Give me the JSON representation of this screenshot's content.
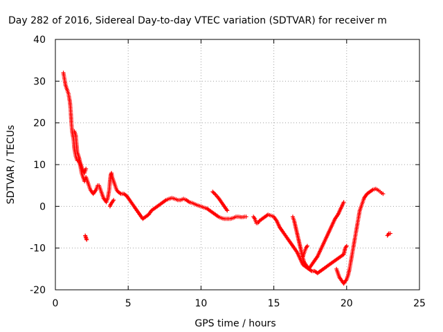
{
  "chart_data": {
    "type": "scatter",
    "title": "Day 282 of 2016, Sidereal Day-to-day VTEC variation (SDTVAR) for receiver m",
    "xlabel": "GPS time / hours",
    "ylabel": "SDTVAR / TECUs",
    "xlim": [
      0,
      25
    ],
    "ylim": [
      -20,
      40
    ],
    "xticks": [
      "0",
      "5",
      "10",
      "15",
      "20",
      "25"
    ],
    "yticks": [
      "-20",
      "-10",
      "0",
      "10",
      "20",
      "30",
      "40"
    ],
    "grid": true,
    "marker": "+",
    "color": "#ff0000",
    "series": [
      {
        "segments": [
          [
            [
              0.55,
              32
            ],
            [
              0.6,
              31
            ],
            [
              0.65,
              30
            ],
            [
              0.7,
              29
            ],
            [
              0.8,
              28
            ],
            [
              0.9,
              27
            ],
            [
              1.0,
              25
            ],
            [
              1.05,
              23
            ],
            [
              1.1,
              20
            ],
            [
              1.15,
              18
            ],
            [
              1.2,
              17
            ],
            [
              1.25,
              16
            ],
            [
              1.3,
              14
            ],
            [
              1.35,
              13
            ],
            [
              1.4,
              12
            ],
            [
              1.5,
              11
            ],
            [
              1.6,
              11
            ],
            [
              1.7,
              10
            ],
            [
              1.8,
              8
            ],
            [
              1.9,
              7
            ],
            [
              2.0,
              6
            ],
            [
              2.1,
              7
            ],
            [
              2.2,
              6
            ],
            [
              2.3,
              5
            ],
            [
              2.4,
              4
            ],
            [
              2.5,
              3.5
            ],
            [
              2.6,
              3
            ],
            [
              2.7,
              3.5
            ],
            [
              2.8,
              4
            ],
            [
              2.9,
              5
            ],
            [
              3.0,
              5
            ],
            [
              3.1,
              4
            ],
            [
              3.2,
              3
            ],
            [
              3.3,
              2
            ],
            [
              3.4,
              1.5
            ],
            [
              3.5,
              1
            ],
            [
              3.6,
              2
            ],
            [
              3.7,
              4
            ],
            [
              3.75,
              6
            ],
            [
              3.8,
              7.5
            ],
            [
              3.85,
              8
            ],
            [
              3.9,
              7
            ],
            [
              4.0,
              6
            ],
            [
              4.1,
              5
            ],
            [
              4.2,
              4
            ],
            [
              4.3,
              3.5
            ],
            [
              4.5,
              3
            ],
            [
              4.7,
              3
            ],
            [
              4.9,
              2.5
            ],
            [
              5.0,
              2
            ],
            [
              5.2,
              1
            ],
            [
              5.4,
              0
            ],
            [
              5.6,
              -1
            ],
            [
              5.8,
              -2
            ],
            [
              6.0,
              -3
            ],
            [
              6.2,
              -2.5
            ],
            [
              6.4,
              -2
            ],
            [
              6.6,
              -1
            ],
            [
              6.8,
              -0.5
            ],
            [
              7.0,
              0
            ],
            [
              7.2,
              0.5
            ],
            [
              7.4,
              1
            ],
            [
              7.6,
              1.5
            ],
            [
              7.8,
              1.8
            ],
            [
              8.0,
              2
            ],
            [
              8.2,
              1.8
            ],
            [
              8.4,
              1.5
            ],
            [
              8.6,
              1.5
            ],
            [
              8.8,
              1.8
            ],
            [
              9.0,
              1.5
            ],
            [
              9.2,
              1
            ],
            [
              9.4,
              0.8
            ],
            [
              9.6,
              0.5
            ],
            [
              9.8,
              0.2
            ],
            [
              10.0,
              0
            ],
            [
              10.2,
              -0.3
            ],
            [
              10.4,
              -0.5
            ],
            [
              10.6,
              -1
            ],
            [
              10.8,
              -1.5
            ],
            [
              11.0,
              -2
            ],
            [
              11.2,
              -2.5
            ],
            [
              11.4,
              -2.8
            ],
            [
              11.6,
              -3
            ],
            [
              11.8,
              -3
            ],
            [
              12.0,
              -3
            ],
            [
              12.2,
              -2.8
            ],
            [
              12.4,
              -2.5
            ],
            [
              12.6,
              -2.5
            ],
            [
              12.8,
              -2.6
            ],
            [
              13.0,
              -2.5
            ],
            [
              13.1,
              -2.5
            ]
          ],
          [
            [
              10.8,
              3.5
            ],
            [
              11.0,
              2.8
            ],
            [
              11.2,
              2
            ],
            [
              11.4,
              1
            ],
            [
              11.6,
              0
            ],
            [
              11.7,
              -0.5
            ],
            [
              11.8,
              -1
            ]
          ],
          [
            [
              13.6,
              -2.5
            ],
            [
              13.7,
              -3
            ],
            [
              13.8,
              -4
            ],
            [
              13.9,
              -4
            ],
            [
              14.0,
              -3.5
            ],
            [
              14.2,
              -3
            ],
            [
              14.4,
              -2.5
            ],
            [
              14.6,
              -2
            ],
            [
              14.8,
              -2.2
            ],
            [
              15.0,
              -2.5
            ],
            [
              15.2,
              -3.5
            ],
            [
              15.4,
              -5
            ],
            [
              15.6,
              -6
            ],
            [
              15.8,
              -7
            ],
            [
              16.0,
              -8
            ],
            [
              16.2,
              -9
            ],
            [
              16.4,
              -10
            ],
            [
              16.6,
              -11
            ],
            [
              16.8,
              -12.5
            ],
            [
              17.0,
              -14
            ],
            [
              17.2,
              -14.5
            ],
            [
              17.4,
              -15
            ],
            [
              17.6,
              -15.5
            ],
            [
              17.8,
              -15.5
            ],
            [
              18.0,
              -16
            ],
            [
              18.2,
              -15.5
            ],
            [
              18.4,
              -15
            ],
            [
              18.6,
              -14.5
            ],
            [
              18.8,
              -14
            ],
            [
              19.0,
              -13.5
            ],
            [
              19.2,
              -13
            ],
            [
              19.4,
              -12.5
            ],
            [
              19.6,
              -12
            ],
            [
              19.8,
              -11.5
            ],
            [
              19.9,
              -10
            ],
            [
              20.0,
              -9.5
            ]
          ],
          [
            [
              16.3,
              -2.5
            ],
            [
              16.4,
              -3.5
            ],
            [
              16.5,
              -5
            ],
            [
              16.6,
              -6.5
            ],
            [
              16.7,
              -8
            ],
            [
              16.8,
              -9.5
            ],
            [
              16.9,
              -11
            ],
            [
              17.0,
              -12.5
            ],
            [
              17.1,
              -13.5
            ],
            [
              17.2,
              -14
            ],
            [
              17.3,
              -14.5
            ],
            [
              17.4,
              -15
            ],
            [
              17.6,
              -14
            ],
            [
              17.8,
              -13
            ],
            [
              18.0,
              -12
            ],
            [
              18.2,
              -10.5
            ],
            [
              18.4,
              -9
            ],
            [
              18.6,
              -7.5
            ],
            [
              18.8,
              -6
            ],
            [
              19.0,
              -4.5
            ],
            [
              19.2,
              -3
            ],
            [
              19.4,
              -2
            ],
            [
              19.6,
              -0.5
            ],
            [
              19.8,
              1
            ]
          ],
          [
            [
              17.0,
              -12
            ],
            [
              17.1,
              -11
            ],
            [
              17.2,
              -10
            ],
            [
              17.3,
              -9.5
            ]
          ],
          [
            [
              19.3,
              -15
            ],
            [
              19.4,
              -16
            ],
            [
              19.5,
              -17
            ],
            [
              19.6,
              -17.5
            ],
            [
              19.7,
              -18
            ],
            [
              19.8,
              -18.5
            ],
            [
              19.9,
              -18
            ],
            [
              20.0,
              -17.5
            ],
            [
              20.1,
              -16.5
            ],
            [
              20.2,
              -15
            ],
            [
              20.3,
              -13
            ],
            [
              20.4,
              -11
            ],
            [
              20.5,
              -9
            ],
            [
              20.6,
              -7
            ],
            [
              20.7,
              -5
            ],
            [
              20.8,
              -3
            ],
            [
              20.9,
              -1
            ],
            [
              21.0,
              0
            ],
            [
              21.1,
              1
            ],
            [
              21.2,
              2
            ],
            [
              21.4,
              3
            ],
            [
              21.6,
              3.5
            ],
            [
              21.8,
              4
            ],
            [
              22.0,
              4.2
            ],
            [
              22.2,
              3.8
            ],
            [
              22.3,
              3.5
            ],
            [
              22.4,
              3.2
            ],
            [
              22.5,
              3
            ]
          ],
          [
            [
              2.05,
              -7
            ],
            [
              2.1,
              -7.5
            ],
            [
              2.15,
              -8
            ]
          ],
          [
            [
              3.75,
              0
            ],
            [
              3.8,
              0.5
            ],
            [
              3.9,
              1
            ],
            [
              4.0,
              1.5
            ]
          ],
          [
            [
              22.8,
              -7
            ],
            [
              22.9,
              -6.5
            ],
            [
              23.0,
              -6.5
            ]
          ],
          [
            [
              1.3,
              18
            ],
            [
              1.4,
              17
            ],
            [
              1.5,
              13
            ],
            [
              1.6,
              12
            ],
            [
              1.7,
              10.5
            ],
            [
              1.8,
              9.5
            ],
            [
              1.9,
              8.5
            ],
            [
              2.0,
              8
            ],
            [
              2.1,
              9
            ]
          ]
        ]
      }
    ]
  }
}
